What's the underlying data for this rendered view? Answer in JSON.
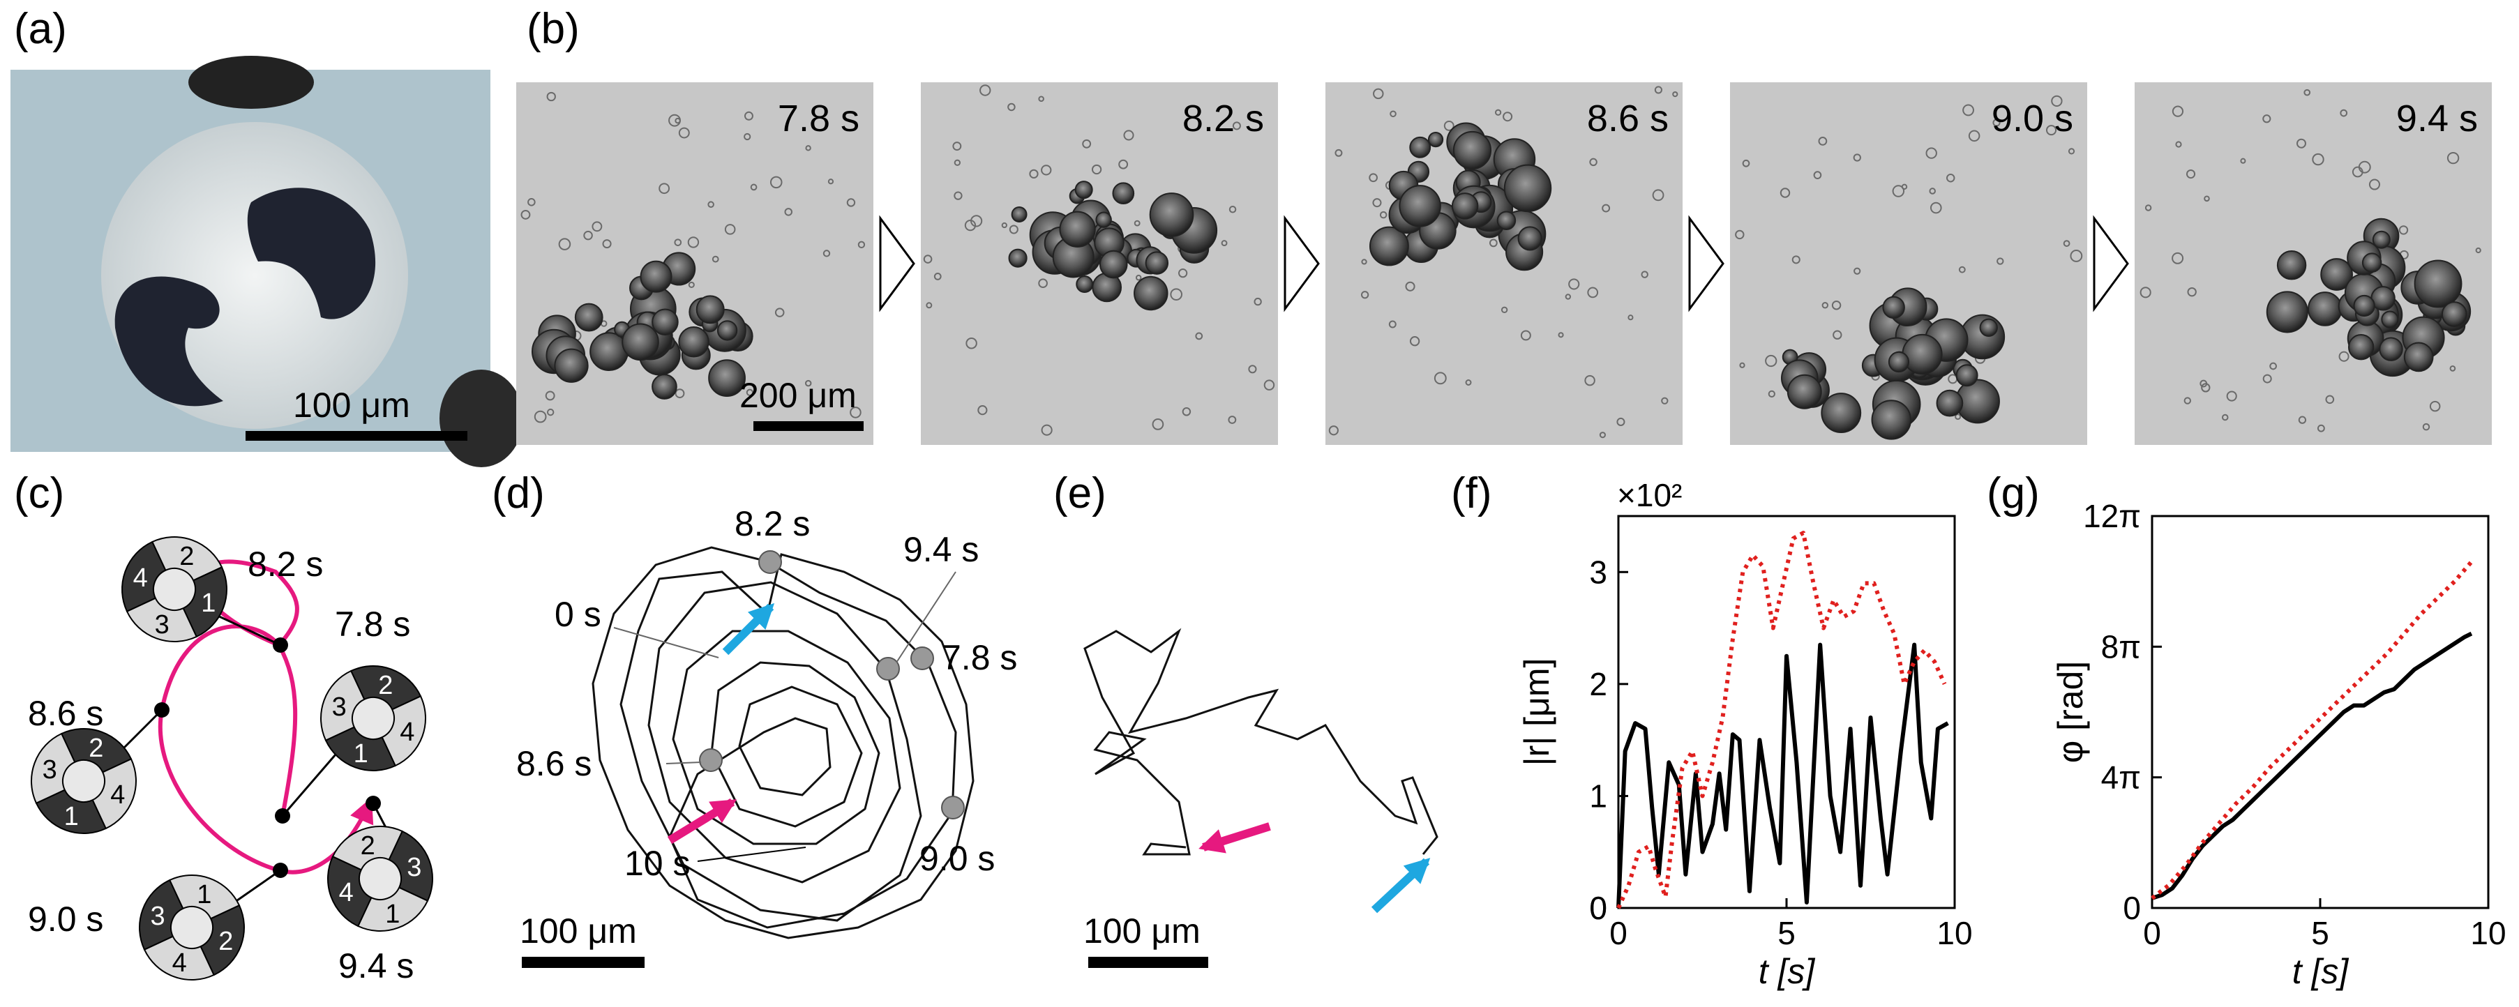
{
  "panels": {
    "a": {
      "label": "(a)",
      "scalebar": "100 μm"
    },
    "b": {
      "label": "(b)",
      "frames": [
        "7.8 s",
        "8.2 s",
        "8.6 s",
        "9.0 s",
        "9.4 s"
      ],
      "scalebar": "200 μm"
    },
    "c": {
      "label": "(c)",
      "times": [
        "8.2 s",
        "7.8 s",
        "8.6 s",
        "9.0 s",
        "9.4 s"
      ],
      "particles": [
        {
          "id": "8.2",
          "numbers": [
            "2",
            "1",
            "3",
            "4"
          ]
        },
        {
          "id": "7.8",
          "numbers": [
            "3",
            "2",
            "4",
            "1"
          ]
        },
        {
          "id": "8.6",
          "numbers": [
            "4",
            "1",
            "3",
            "2"
          ]
        },
        {
          "id": "9.0",
          "numbers": [
            "4",
            "3",
            "1",
            "2"
          ]
        },
        {
          "id": "9.4",
          "numbers": [
            "2",
            "3",
            "1",
            "4"
          ]
        }
      ],
      "colors": {
        "path": "#e6197f",
        "dark": "#333333",
        "light": "#d9d9d9"
      }
    },
    "d": {
      "label": "(d)",
      "times": [
        "8.2 s",
        "9.4 s",
        "0 s",
        "7.8 s",
        "8.6 s",
        "10 s",
        "9.0 s"
      ],
      "scalebar": "100 μm",
      "colors": {
        "start_arrow": "#e6197f",
        "end_arrow": "#1ea7e0",
        "marker": "#999999"
      }
    },
    "e": {
      "label": "(e)",
      "scalebar": "100 μm"
    },
    "f": {
      "label": "(f)",
      "multiplier": "×10²"
    },
    "g": {
      "label": "(g)"
    }
  },
  "chart_data": [
    {
      "type": "line",
      "panel": "f",
      "xlabel": "t [s]",
      "ylabel": "|r| [μm]",
      "xlim": [
        0,
        10
      ],
      "ylim": [
        0,
        3.5
      ],
      "xticks": [
        0,
        5,
        10
      ],
      "yticks": [
        0,
        1,
        2,
        3
      ],
      "series": [
        {
          "style": "solid",
          "color": "#000000",
          "x": [
            0,
            0.2,
            0.5,
            0.8,
            1.0,
            1.2,
            1.5,
            1.8,
            2.0,
            2.3,
            2.5,
            2.8,
            3.0,
            3.2,
            3.4,
            3.6,
            3.9,
            4.2,
            4.5,
            4.8,
            5.0,
            5.3,
            5.6,
            6.0,
            6.3,
            6.6,
            6.9,
            7.2,
            7.5,
            7.8,
            8.0,
            8.4,
            8.8,
            9.0,
            9.3,
            9.5,
            9.8
          ],
          "y": [
            0,
            1.4,
            1.65,
            1.6,
            0.9,
            0.3,
            1.3,
            1.1,
            0.3,
            1.2,
            0.5,
            0.75,
            1.2,
            0.7,
            1.55,
            1.5,
            0.15,
            1.5,
            0.9,
            0.4,
            2.25,
            1.3,
            0.05,
            2.35,
            1.0,
            0.5,
            1.6,
            0.2,
            1.7,
            0.8,
            0.3,
            1.4,
            2.35,
            1.3,
            0.8,
            1.6,
            1.65
          ]
        },
        {
          "style": "dotted",
          "color": "#e0201e",
          "x": [
            0,
            0.3,
            0.6,
            0.9,
            1.1,
            1.4,
            1.6,
            1.9,
            2.2,
            2.5,
            2.8,
            3.1,
            3.4,
            3.7,
            4.0,
            4.3,
            4.6,
            4.9,
            5.2,
            5.5,
            5.8,
            6.1,
            6.4,
            6.7,
            7.0,
            7.3,
            7.6,
            7.9,
            8.2,
            8.5,
            8.8,
            9.1,
            9.4,
            9.7
          ],
          "y": [
            0,
            0.2,
            0.5,
            0.55,
            0.35,
            0.1,
            0.6,
            1.25,
            1.4,
            1.0,
            1.3,
            1.7,
            2.4,
            3.0,
            3.15,
            3.05,
            2.5,
            2.9,
            3.3,
            3.35,
            2.9,
            2.5,
            2.75,
            2.6,
            2.65,
            2.9,
            2.9,
            2.65,
            2.45,
            2.0,
            2.2,
            2.3,
            2.2,
            2.0
          ]
        }
      ]
    },
    {
      "type": "line",
      "panel": "g",
      "xlabel": "t [s]",
      "ylabel": "φ [rad]",
      "xlim": [
        0,
        10
      ],
      "ylim": [
        0,
        12
      ],
      "xticks": [
        0,
        5,
        10
      ],
      "yticks": [
        4,
        8,
        12
      ],
      "ytick_labels": [
        "4π",
        "8π",
        "12π"
      ],
      "series": [
        {
          "style": "solid",
          "color": "#000000",
          "x": [
            0,
            0.3,
            0.6,
            0.9,
            1.2,
            1.5,
            1.8,
            2.1,
            2.4,
            2.7,
            3.0,
            3.3,
            3.6,
            3.9,
            4.2,
            4.5,
            4.8,
            5.1,
            5.4,
            5.7,
            6.0,
            6.3,
            6.6,
            6.9,
            7.2,
            7.5,
            7.8,
            8.1,
            8.4,
            8.7,
            9.0,
            9.3,
            9.5
          ],
          "y": [
            0.3,
            0.4,
            0.6,
            1.0,
            1.5,
            1.9,
            2.2,
            2.5,
            2.7,
            3.0,
            3.3,
            3.6,
            3.9,
            4.2,
            4.5,
            4.8,
            5.1,
            5.4,
            5.7,
            6.0,
            6.2,
            6.2,
            6.4,
            6.6,
            6.7,
            7.0,
            7.3,
            7.5,
            7.7,
            7.9,
            8.1,
            8.3,
            8.4
          ]
        },
        {
          "style": "dotted",
          "color": "#e0201e",
          "x": [
            0,
            0.5,
            1.0,
            1.5,
            2.0,
            2.5,
            3.0,
            3.5,
            4.0,
            4.5,
            5.0,
            5.5,
            6.0,
            6.5,
            7.0,
            7.5,
            8.0,
            8.5,
            9.0,
            9.5
          ],
          "y": [
            0.3,
            0.7,
            1.3,
            2.0,
            2.6,
            3.2,
            3.7,
            4.3,
            4.8,
            5.3,
            5.8,
            6.3,
            6.8,
            7.3,
            7.8,
            8.4,
            9.0,
            9.5,
            10.0,
            10.6
          ]
        }
      ]
    }
  ]
}
